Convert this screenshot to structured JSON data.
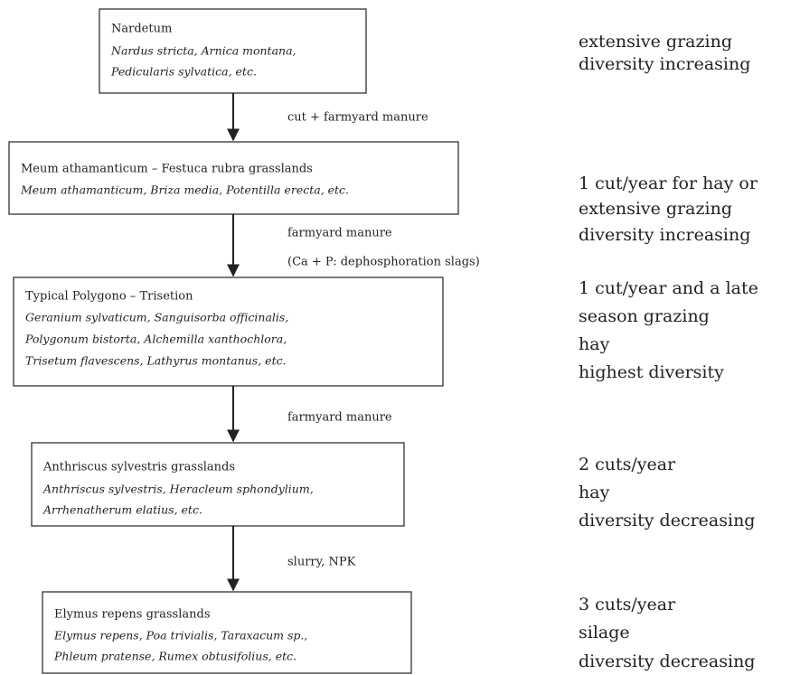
{
  "nodes": [
    {
      "title": "Nardetum",
      "species": [
        "Nardus stricta, Arnica montana,",
        "Pedicularis sylvatica, etc."
      ]
    },
    {
      "title": "Meum athamanticum  –  Festuca rubra grasslands",
      "species": [
        "Meum athamanticum, Briza media, Potentilla erecta, etc."
      ]
    },
    {
      "title": "Typical Polygono  –  Trisetion",
      "species": [
        "Geranium sylvaticum, Sanguisorba officinalis,",
        "Polygonum bistorta, Alchemilla xanthochlora,",
        "Trisetum flavescens, Lathyrus montanus, etc."
      ]
    },
    {
      "title": "Anthriscus sylvestris grasslands",
      "species": [
        "Anthriscus sylvestris, Heracleum sphondylium,",
        "Arrhenatherum elatius, etc."
      ]
    },
    {
      "title": "Elymus repens grasslands",
      "species": [
        "Elymus repens, Poa trivialis, Taraxacum sp.,",
        "Phleum pratense, Rumex obtusifolius, etc."
      ]
    }
  ],
  "edges": [
    {
      "labels": [
        "cut + farmyard manure"
      ]
    },
    {
      "labels": [
        "farmyard manure",
        "(Ca + P: dephosphoration slags)"
      ]
    },
    {
      "labels": [
        "farmyard manure"
      ]
    },
    {
      "labels": [
        "slurry, NPK"
      ]
    }
  ],
  "notes": [
    [
      "extensive grazing",
      "diversity increasing"
    ],
    [
      "1 cut/year for hay or",
      "extensive grazing",
      "diversity increasing"
    ],
    [
      "1 cut/year and a late",
      "season grazing",
      "hay",
      "highest diversity"
    ],
    [
      "2 cuts/year",
      "hay",
      "diversity decreasing"
    ],
    [
      "3 cuts/year",
      "silage",
      "diversity decreasing"
    ]
  ]
}
